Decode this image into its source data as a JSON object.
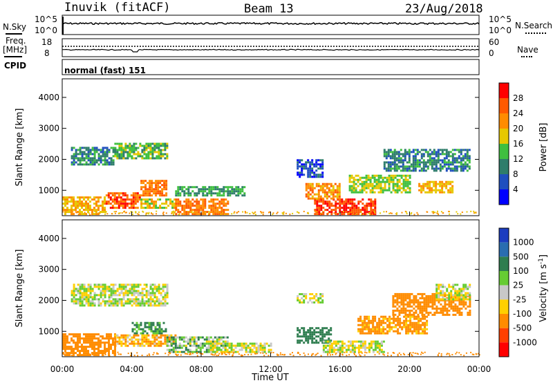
{
  "header": {
    "station": "Inuvik (fitACF)",
    "beam": "Beam 13",
    "date": "23/Aug/2018"
  },
  "noise_panel": {
    "left_label": "N.Sky",
    "right_label": "N.Search",
    "left_ticks": [
      "10^5",
      "10^0"
    ],
    "right_ticks": [
      "10^5",
      "10^0"
    ]
  },
  "freq_panel": {
    "left_label_line1": "Freq.",
    "left_label_line2": "[MHz]",
    "right_label": "Nave",
    "left_ticks": [
      "18",
      "8"
    ],
    "right_ticks": [
      "60",
      "0"
    ]
  },
  "cpid": {
    "label": "CPID",
    "value": "normal (fast) 151"
  },
  "colors": {
    "power_scale": [
      "#0000ff",
      "#1f4fbf",
      "#2e7d6b",
      "#3fbf3f",
      "#e6c800",
      "#ff8c00",
      "#ff5a00",
      "#ff0000"
    ],
    "velocity_scale": [
      "#1c3cbf",
      "#2a6db0",
      "#2e7d4f",
      "#66cc33",
      "#c8c8c8",
      "#ffd000",
      "#ff8c00",
      "#ff4000",
      "#ff0000"
    ]
  },
  "chart_data": [
    {
      "type": "heatmap",
      "title": "",
      "xlabel": "",
      "ylabel": "Slant Range [km]",
      "x_ticks": [
        "00:00",
        "04:00",
        "08:00",
        "12:00",
        "16:00",
        "20:00",
        "00:00"
      ],
      "y_ticks": [
        1000,
        2000,
        3000,
        4000
      ],
      "ylim": [
        180,
        4600
      ],
      "colorbar_label": "Power [dB]",
      "colorbar_ticks": [
        4,
        8,
        12,
        16,
        20,
        24,
        28
      ],
      "clim": [
        0,
        32
      ],
      "x_unit": "hours UT",
      "regions": [
        {
          "t0": 0.0,
          "t1": 2.5,
          "r0": 200,
          "r1": 800,
          "value": 20
        },
        {
          "t0": 2.5,
          "t1": 4.5,
          "r0": 400,
          "r1": 900,
          "value": 26
        },
        {
          "t0": 4.5,
          "t1": 6.0,
          "r0": 800,
          "r1": 1300,
          "value": 24
        },
        {
          "t0": 4.5,
          "t1": 6.5,
          "r0": 400,
          "r1": 700,
          "value": 18
        },
        {
          "t0": 6.5,
          "t1": 9.5,
          "r0": 200,
          "r1": 700,
          "value": 24
        },
        {
          "t0": 6.5,
          "t1": 10.5,
          "r0": 800,
          "r1": 1100,
          "value": 12
        },
        {
          "t0": 0.5,
          "t1": 3.0,
          "r0": 1800,
          "r1": 2400,
          "value": 10
        },
        {
          "t0": 3.0,
          "t1": 6.0,
          "r0": 2000,
          "r1": 2500,
          "value": 14
        },
        {
          "t0": 13.5,
          "t1": 15.0,
          "r0": 1400,
          "r1": 2000,
          "value": 6
        },
        {
          "t0": 14.5,
          "t1": 18.0,
          "r0": 200,
          "r1": 700,
          "value": 28
        },
        {
          "t0": 14.0,
          "t1": 16.0,
          "r0": 700,
          "r1": 1200,
          "value": 22
        },
        {
          "t0": 16.5,
          "t1": 20.0,
          "r0": 900,
          "r1": 1500,
          "value": 16
        },
        {
          "t0": 18.5,
          "t1": 23.5,
          "r0": 1600,
          "r1": 2300,
          "value": 10
        },
        {
          "t0": 20.5,
          "t1": 22.5,
          "r0": 900,
          "r1": 1300,
          "value": 20
        }
      ]
    },
    {
      "type": "heatmap",
      "title": "",
      "xlabel": "Time UT",
      "ylabel": "Slant Range [km]",
      "x_ticks": [
        "00:00",
        "04:00",
        "08:00",
        "12:00",
        "16:00",
        "20:00",
        "00:00"
      ],
      "y_ticks": [
        1000,
        2000,
        3000,
        4000
      ],
      "ylim": [
        180,
        4600
      ],
      "colorbar_label": "Velocity [m s^-1]",
      "colorbar_ticks": [
        1000,
        500,
        100,
        25,
        -25,
        -100,
        -500,
        -1000
      ],
      "x_unit": "hours UT",
      "regions": [
        {
          "t0": 0.0,
          "t1": 3.0,
          "r0": 200,
          "r1": 900,
          "value": -300
        },
        {
          "t0": 4.0,
          "t1": 6.0,
          "r0": 900,
          "r1": 1300,
          "value": 150
        },
        {
          "t0": 3.0,
          "t1": 6.5,
          "r0": 500,
          "r1": 900,
          "value": -100
        },
        {
          "t0": 6.0,
          "t1": 9.5,
          "r0": 300,
          "r1": 800,
          "value": 50
        },
        {
          "t0": 8.5,
          "t1": 12.0,
          "r0": 300,
          "r1": 600,
          "value": 0
        },
        {
          "t0": 0.5,
          "t1": 6.0,
          "r0": 1800,
          "r1": 2500,
          "value": 0
        },
        {
          "t0": 13.5,
          "t1": 15.5,
          "r0": 600,
          "r1": 1100,
          "value": 200
        },
        {
          "t0": 15.0,
          "t1": 18.5,
          "r0": 300,
          "r1": 700,
          "value": 0
        },
        {
          "t0": 17.0,
          "t1": 21.0,
          "r0": 900,
          "r1": 1500,
          "value": -150
        },
        {
          "t0": 19.0,
          "t1": 23.5,
          "r0": 1500,
          "r1": 2200,
          "value": -300
        },
        {
          "t0": 21.5,
          "t1": 23.5,
          "r0": 2000,
          "r1": 2500,
          "value": 0
        },
        {
          "t0": 13.5,
          "t1": 15.0,
          "r0": 1900,
          "r1": 2200,
          "value": 0
        }
      ]
    }
  ]
}
